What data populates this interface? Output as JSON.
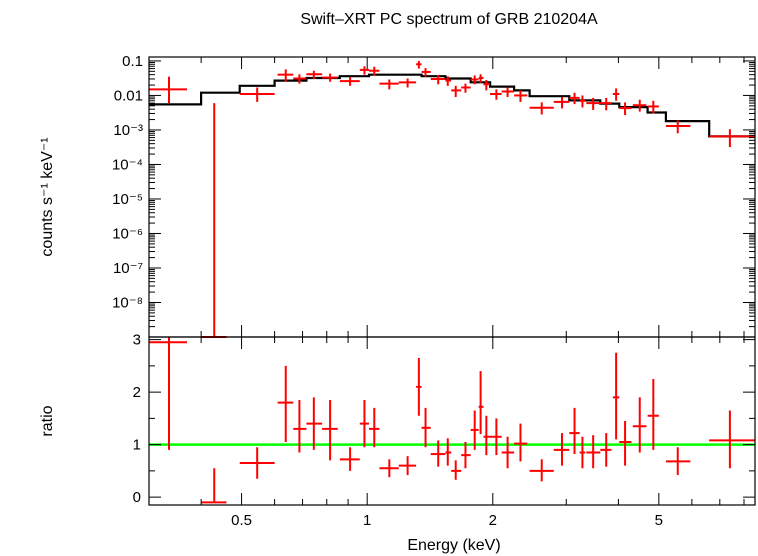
{
  "chart_data": [
    {
      "type": "scatter",
      "title": "Swift–XRT PC spectrum of GRB 210204A",
      "xlabel": "",
      "ylabel": "counts s⁻¹ keV⁻¹",
      "xscale": "log",
      "yscale": "log",
      "xlim": [
        0.3,
        8.5
      ],
      "ylim": [
        1e-09,
        0.13
      ],
      "yticks": [
        {
          "v": 0.1,
          "label": "0.1"
        },
        {
          "v": 0.01,
          "label": "0.01"
        },
        {
          "v": 0.001,
          "label": "10⁻³"
        },
        {
          "v": 0.0001,
          "label": "10⁻⁴"
        },
        {
          "v": 1e-05,
          "label": "10⁻⁵"
        },
        {
          "v": 1e-06,
          "label": "10⁻⁶"
        },
        {
          "v": 1e-07,
          "label": "10⁻⁷"
        },
        {
          "v": 1e-08,
          "label": "10⁻⁸"
        }
      ],
      "data_color": "#ff0000",
      "model_color": "#000000",
      "data": [
        {
          "x": 0.335,
          "xlo": 0.3,
          "xhi": 0.37,
          "y": 0.015,
          "ylo": 0.006,
          "yhi": 0.035
        },
        {
          "x": 0.43,
          "xlo": 0.4,
          "xhi": 0.46,
          "y": 1e-09,
          "ylo": 1e-09,
          "yhi": 0.006
        },
        {
          "x": 0.545,
          "xlo": 0.495,
          "xhi": 0.6,
          "y": 0.011,
          "ylo": 0.0065,
          "yhi": 0.017
        },
        {
          "x": 0.638,
          "xlo": 0.61,
          "xhi": 0.665,
          "y": 0.04,
          "ylo": 0.025,
          "yhi": 0.057
        },
        {
          "x": 0.688,
          "xlo": 0.665,
          "xhi": 0.715,
          "y": 0.031,
          "ylo": 0.022,
          "yhi": 0.041
        },
        {
          "x": 0.745,
          "xlo": 0.715,
          "xhi": 0.78,
          "y": 0.041,
          "ylo": 0.03,
          "yhi": 0.052
        },
        {
          "x": 0.815,
          "xlo": 0.78,
          "xhi": 0.85,
          "y": 0.033,
          "ylo": 0.025,
          "yhi": 0.043
        },
        {
          "x": 0.91,
          "xlo": 0.86,
          "xhi": 0.96,
          "y": 0.026,
          "ylo": 0.019,
          "yhi": 0.034
        },
        {
          "x": 0.985,
          "xlo": 0.96,
          "xhi": 1.01,
          "y": 0.055,
          "ylo": 0.04,
          "yhi": 0.07
        },
        {
          "x": 1.04,
          "xlo": 1.01,
          "xhi": 1.07,
          "y": 0.052,
          "ylo": 0.038,
          "yhi": 0.068
        },
        {
          "x": 1.13,
          "xlo": 1.07,
          "xhi": 1.19,
          "y": 0.022,
          "ylo": 0.015,
          "yhi": 0.029
        },
        {
          "x": 1.25,
          "xlo": 1.19,
          "xhi": 1.31,
          "y": 0.024,
          "ylo": 0.017,
          "yhi": 0.031
        },
        {
          "x": 1.33,
          "xlo": 1.31,
          "xhi": 1.35,
          "y": 0.08,
          "ylo": 0.06,
          "yhi": 0.1
        },
        {
          "x": 1.38,
          "xlo": 1.35,
          "xhi": 1.42,
          "y": 0.048,
          "ylo": 0.035,
          "yhi": 0.062
        },
        {
          "x": 1.48,
          "xlo": 1.42,
          "xhi": 1.54,
          "y": 0.03,
          "ylo": 0.021,
          "yhi": 0.039
        },
        {
          "x": 1.56,
          "xlo": 1.54,
          "xhi": 1.59,
          "y": 0.027,
          "ylo": 0.019,
          "yhi": 0.036
        },
        {
          "x": 1.63,
          "xlo": 1.59,
          "xhi": 1.68,
          "y": 0.014,
          "ylo": 0.009,
          "yhi": 0.019
        },
        {
          "x": 1.72,
          "xlo": 1.68,
          "xhi": 1.77,
          "y": 0.017,
          "ylo": 0.012,
          "yhi": 0.022
        },
        {
          "x": 1.81,
          "xlo": 1.77,
          "xhi": 1.85,
          "y": 0.029,
          "ylo": 0.021,
          "yhi": 0.038
        },
        {
          "x": 1.87,
          "xlo": 1.85,
          "xhi": 1.9,
          "y": 0.032,
          "ylo": 0.023,
          "yhi": 0.041
        },
        {
          "x": 1.93,
          "xlo": 1.9,
          "xhi": 1.97,
          "y": 0.021,
          "ylo": 0.014,
          "yhi": 0.028
        },
        {
          "x": 2.04,
          "xlo": 1.97,
          "xhi": 2.1,
          "y": 0.011,
          "ylo": 0.0075,
          "yhi": 0.015
        },
        {
          "x": 2.17,
          "xlo": 2.1,
          "xhi": 2.25,
          "y": 0.013,
          "ylo": 0.009,
          "yhi": 0.017
        },
        {
          "x": 2.33,
          "xlo": 2.25,
          "xhi": 2.42,
          "y": 0.01,
          "ylo": 0.0065,
          "yhi": 0.014
        },
        {
          "x": 2.62,
          "xlo": 2.45,
          "xhi": 2.8,
          "y": 0.0044,
          "ylo": 0.0028,
          "yhi": 0.0063
        },
        {
          "x": 2.93,
          "xlo": 2.8,
          "xhi": 3.05,
          "y": 0.0065,
          "ylo": 0.0042,
          "yhi": 0.009
        },
        {
          "x": 3.14,
          "xlo": 3.05,
          "xhi": 3.23,
          "y": 0.0085,
          "ylo": 0.0056,
          "yhi": 0.012
        },
        {
          "x": 3.28,
          "xlo": 3.23,
          "xhi": 3.33,
          "y": 0.007,
          "ylo": 0.0045,
          "yhi": 0.01
        },
        {
          "x": 3.48,
          "xlo": 3.35,
          "xhi": 3.62,
          "y": 0.006,
          "ylo": 0.0038,
          "yhi": 0.0085
        },
        {
          "x": 3.74,
          "xlo": 3.62,
          "xhi": 3.85,
          "y": 0.006,
          "ylo": 0.0037,
          "yhi": 0.0085
        },
        {
          "x": 3.95,
          "xlo": 3.88,
          "xhi": 4.02,
          "y": 0.011,
          "ylo": 0.007,
          "yhi": 0.016
        },
        {
          "x": 4.15,
          "xlo": 4.02,
          "xhi": 4.3,
          "y": 0.0043,
          "ylo": 0.0027,
          "yhi": 0.0063
        },
        {
          "x": 4.5,
          "xlo": 4.33,
          "xhi": 4.67,
          "y": 0.0052,
          "ylo": 0.0034,
          "yhi": 0.0075
        },
        {
          "x": 4.85,
          "xlo": 4.7,
          "xhi": 5.0,
          "y": 0.0048,
          "ylo": 0.003,
          "yhi": 0.007
        },
        {
          "x": 5.55,
          "xlo": 5.2,
          "xhi": 5.95,
          "y": 0.0013,
          "ylo": 0.0008,
          "yhi": 0.0019
        },
        {
          "x": 7.4,
          "xlo": 6.6,
          "xhi": 8.5,
          "y": 0.00065,
          "ylo": 0.00032,
          "yhi": 0.00105
        }
      ],
      "model": [
        {
          "x0": 0.3,
          "x1": 0.4,
          "y": 0.0055
        },
        {
          "x0": 0.4,
          "x1": 0.495,
          "y": 0.012
        },
        {
          "x0": 0.495,
          "x1": 0.6,
          "y": 0.019
        },
        {
          "x0": 0.6,
          "x1": 0.715,
          "y": 0.027
        },
        {
          "x0": 0.715,
          "x1": 0.86,
          "y": 0.032
        },
        {
          "x0": 0.86,
          "x1": 1.01,
          "y": 0.036
        },
        {
          "x0": 1.01,
          "x1": 1.19,
          "y": 0.04
        },
        {
          "x0": 1.19,
          "x1": 1.35,
          "y": 0.04
        },
        {
          "x0": 1.35,
          "x1": 1.54,
          "y": 0.036
        },
        {
          "x0": 1.54,
          "x1": 1.77,
          "y": 0.031
        },
        {
          "x0": 1.77,
          "x1": 1.97,
          "y": 0.024
        },
        {
          "x0": 1.97,
          "x1": 2.25,
          "y": 0.018
        },
        {
          "x0": 2.25,
          "x1": 2.45,
          "y": 0.014
        },
        {
          "x0": 2.45,
          "x1": 3.05,
          "y": 0.0095
        },
        {
          "x0": 3.05,
          "x1": 3.62,
          "y": 0.0072
        },
        {
          "x0": 3.62,
          "x1": 4.02,
          "y": 0.0058
        },
        {
          "x0": 4.02,
          "x1": 4.7,
          "y": 0.0046
        },
        {
          "x0": 4.7,
          "x1": 5.2,
          "y": 0.0032
        },
        {
          "x0": 5.2,
          "x1": 6.6,
          "y": 0.0018
        },
        {
          "x0": 6.6,
          "x1": 8.5,
          "y": 0.00065
        }
      ]
    },
    {
      "type": "scatter",
      "title": "",
      "xlabel": "Energy (keV)",
      "ylabel": "ratio",
      "xscale": "log",
      "yscale": "linear",
      "xlim": [
        0.3,
        8.5
      ],
      "ylim": [
        -0.15,
        3.05
      ],
      "yticks": [
        {
          "v": 0,
          "label": "0"
        },
        {
          "v": 1,
          "label": "1"
        },
        {
          "v": 2,
          "label": "2"
        },
        {
          "v": 3,
          "label": "3"
        }
      ],
      "xticks": [
        {
          "v": 0.5,
          "label": "0.5"
        },
        {
          "v": 1,
          "label": "1"
        },
        {
          "v": 2,
          "label": "2"
        },
        {
          "v": 5,
          "label": "5"
        }
      ],
      "reference_line": 1,
      "reference_color": "#00ff00",
      "data_color": "#ff0000",
      "data": [
        {
          "x": 0.335,
          "xlo": 0.3,
          "xhi": 0.37,
          "y": 2.95,
          "ylo": 0.9,
          "yhi": 3.05
        },
        {
          "x": 0.43,
          "xlo": 0.4,
          "xhi": 0.46,
          "y": -0.1,
          "ylo": -0.1,
          "yhi": 0.55
        },
        {
          "x": 0.545,
          "xlo": 0.495,
          "xhi": 0.6,
          "y": 0.65,
          "ylo": 0.35,
          "yhi": 0.95
        },
        {
          "x": 0.638,
          "xlo": 0.61,
          "xhi": 0.665,
          "y": 1.8,
          "ylo": 1.05,
          "yhi": 2.5
        },
        {
          "x": 0.688,
          "xlo": 0.665,
          "xhi": 0.715,
          "y": 1.3,
          "ylo": 0.85,
          "yhi": 1.85
        },
        {
          "x": 0.745,
          "xlo": 0.715,
          "xhi": 0.78,
          "y": 1.4,
          "ylo": 0.9,
          "yhi": 1.9
        },
        {
          "x": 0.815,
          "xlo": 0.78,
          "xhi": 0.85,
          "y": 1.3,
          "ylo": 0.7,
          "yhi": 1.85
        },
        {
          "x": 0.91,
          "xlo": 0.86,
          "xhi": 0.96,
          "y": 0.72,
          "ylo": 0.5,
          "yhi": 0.95
        },
        {
          "x": 0.985,
          "xlo": 0.96,
          "xhi": 1.01,
          "y": 1.4,
          "ylo": 0.95,
          "yhi": 1.85
        },
        {
          "x": 1.04,
          "xlo": 1.01,
          "xhi": 1.07,
          "y": 1.3,
          "ylo": 0.95,
          "yhi": 1.7
        },
        {
          "x": 1.13,
          "xlo": 1.07,
          "xhi": 1.19,
          "y": 0.55,
          "ylo": 0.38,
          "yhi": 0.72
        },
        {
          "x": 1.25,
          "xlo": 1.19,
          "xhi": 1.31,
          "y": 0.6,
          "ylo": 0.42,
          "yhi": 0.78
        },
        {
          "x": 1.33,
          "xlo": 1.31,
          "xhi": 1.35,
          "y": 2.1,
          "ylo": 1.55,
          "yhi": 2.65
        },
        {
          "x": 1.38,
          "xlo": 1.35,
          "xhi": 1.42,
          "y": 1.32,
          "ylo": 0.95,
          "yhi": 1.7
        },
        {
          "x": 1.48,
          "xlo": 1.42,
          "xhi": 1.54,
          "y": 0.82,
          "ylo": 0.58,
          "yhi": 1.08
        },
        {
          "x": 1.56,
          "xlo": 1.54,
          "xhi": 1.59,
          "y": 0.85,
          "ylo": 0.6,
          "yhi": 1.12
        },
        {
          "x": 1.63,
          "xlo": 1.59,
          "xhi": 1.68,
          "y": 0.5,
          "ylo": 0.33,
          "yhi": 0.7
        },
        {
          "x": 1.72,
          "xlo": 1.68,
          "xhi": 1.77,
          "y": 0.8,
          "ylo": 0.55,
          "yhi": 1.05
        },
        {
          "x": 1.81,
          "xlo": 1.77,
          "xhi": 1.85,
          "y": 1.28,
          "ylo": 0.9,
          "yhi": 1.65
        },
        {
          "x": 1.87,
          "xlo": 1.85,
          "xhi": 1.9,
          "y": 1.72,
          "ylo": 1.2,
          "yhi": 2.4
        },
        {
          "x": 1.93,
          "xlo": 1.9,
          "xhi": 1.97,
          "y": 1.15,
          "ylo": 0.8,
          "yhi": 1.55
        },
        {
          "x": 2.04,
          "xlo": 1.97,
          "xhi": 2.1,
          "y": 1.15,
          "ylo": 0.8,
          "yhi": 1.5
        },
        {
          "x": 2.17,
          "xlo": 2.1,
          "xhi": 2.25,
          "y": 0.85,
          "ylo": 0.55,
          "yhi": 1.15
        },
        {
          "x": 2.33,
          "xlo": 2.25,
          "xhi": 2.42,
          "y": 1.02,
          "ylo": 0.68,
          "yhi": 1.4
        },
        {
          "x": 2.62,
          "xlo": 2.45,
          "xhi": 2.8,
          "y": 0.5,
          "ylo": 0.3,
          "yhi": 0.72
        },
        {
          "x": 2.93,
          "xlo": 2.8,
          "xhi": 3.05,
          "y": 0.9,
          "ylo": 0.6,
          "yhi": 1.22
        },
        {
          "x": 3.14,
          "xlo": 3.05,
          "xhi": 3.23,
          "y": 1.22,
          "ylo": 0.82,
          "yhi": 1.7
        },
        {
          "x": 3.28,
          "xlo": 3.23,
          "xhi": 3.33,
          "y": 0.85,
          "ylo": 0.55,
          "yhi": 1.15
        },
        {
          "x": 3.48,
          "xlo": 3.35,
          "xhi": 3.62,
          "y": 0.85,
          "ylo": 0.55,
          "yhi": 1.18
        },
        {
          "x": 3.74,
          "xlo": 3.62,
          "xhi": 3.85,
          "y": 0.9,
          "ylo": 0.58,
          "yhi": 1.22
        },
        {
          "x": 3.95,
          "xlo": 3.88,
          "xhi": 4.02,
          "y": 1.9,
          "ylo": 1.1,
          "yhi": 2.75
        },
        {
          "x": 4.15,
          "xlo": 4.02,
          "xhi": 4.3,
          "y": 1.05,
          "ylo": 0.6,
          "yhi": 1.45
        },
        {
          "x": 4.5,
          "xlo": 4.33,
          "xhi": 4.67,
          "y": 1.35,
          "ylo": 0.85,
          "yhi": 1.9
        },
        {
          "x": 4.85,
          "xlo": 4.7,
          "xhi": 5.0,
          "y": 1.55,
          "ylo": 0.9,
          "yhi": 2.25
        },
        {
          "x": 5.55,
          "xlo": 5.2,
          "xhi": 5.95,
          "y": 0.68,
          "ylo": 0.42,
          "yhi": 0.95
        },
        {
          "x": 7.4,
          "xlo": 6.6,
          "xhi": 8.5,
          "y": 1.08,
          "ylo": 0.55,
          "yhi": 1.65
        }
      ]
    }
  ]
}
